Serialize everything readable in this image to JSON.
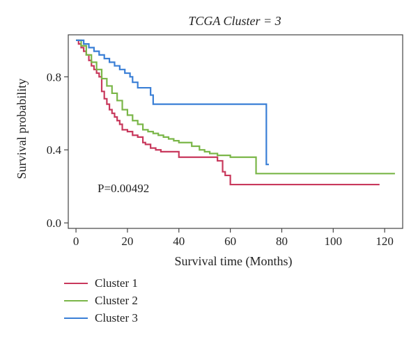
{
  "chart_data": {
    "type": "line",
    "title": "TCGA Cluster = 3",
    "xlabel": "Survival time (Months)",
    "ylabel": "Survival probability",
    "xlim": [
      -3,
      127
    ],
    "ylim": [
      -0.03,
      1.03
    ],
    "x_ticks": [
      0,
      20,
      40,
      60,
      80,
      100,
      120
    ],
    "y_ticks": [
      0.0,
      0.4,
      0.8
    ],
    "y_tick_labels": [
      "0.0",
      "0.4",
      "0.8"
    ],
    "annotation": "P=0.00492",
    "legend_position": "bottom-left",
    "series": [
      {
        "name": "Cluster 1",
        "color": "#c8385c",
        "x": [
          0,
          1,
          2,
          3,
          4,
          5,
          6,
          7,
          8,
          9,
          10,
          11,
          12,
          13,
          14,
          15,
          16,
          17,
          18,
          20,
          22,
          24,
          26,
          27,
          29,
          31,
          33,
          38,
          40,
          55,
          57,
          58,
          60,
          70,
          80,
          90,
          100,
          110,
          118
        ],
        "y": [
          1.0,
          0.98,
          0.96,
          0.94,
          0.92,
          0.89,
          0.86,
          0.84,
          0.82,
          0.8,
          0.72,
          0.68,
          0.65,
          0.62,
          0.6,
          0.58,
          0.56,
          0.54,
          0.51,
          0.5,
          0.48,
          0.47,
          0.44,
          0.43,
          0.41,
          0.4,
          0.39,
          0.39,
          0.36,
          0.34,
          0.28,
          0.26,
          0.21,
          0.21,
          0.21,
          0.21,
          0.21,
          0.21,
          0.21
        ]
      },
      {
        "name": "Cluster 2",
        "color": "#7ab648",
        "x": [
          0,
          2,
          4,
          6,
          8,
          10,
          12,
          14,
          16,
          18,
          20,
          22,
          24,
          26,
          28,
          30,
          32,
          34,
          36,
          38,
          40,
          42,
          45,
          48,
          50,
          52,
          55,
          60,
          65,
          68,
          70,
          80,
          90,
          100,
          110,
          124
        ],
        "y": [
          1.0,
          0.97,
          0.92,
          0.88,
          0.84,
          0.79,
          0.75,
          0.71,
          0.67,
          0.62,
          0.59,
          0.56,
          0.54,
          0.51,
          0.5,
          0.49,
          0.48,
          0.47,
          0.46,
          0.45,
          0.44,
          0.44,
          0.42,
          0.4,
          0.39,
          0.38,
          0.37,
          0.36,
          0.36,
          0.36,
          0.27,
          0.27,
          0.27,
          0.27,
          0.27,
          0.27
        ]
      },
      {
        "name": "Cluster 3",
        "color": "#3a7fd6",
        "x": [
          0,
          1,
          3,
          5,
          7,
          9,
          11,
          13,
          15,
          17,
          19,
          21,
          22,
          24,
          26,
          29,
          30,
          35,
          40,
          50,
          60,
          70,
          73,
          74,
          75
        ],
        "y": [
          1.0,
          1.0,
          0.98,
          0.96,
          0.94,
          0.92,
          0.9,
          0.88,
          0.86,
          0.84,
          0.82,
          0.8,
          0.77,
          0.74,
          0.74,
          0.7,
          0.65,
          0.65,
          0.65,
          0.65,
          0.65,
          0.65,
          0.65,
          0.32,
          0.32
        ]
      }
    ]
  }
}
